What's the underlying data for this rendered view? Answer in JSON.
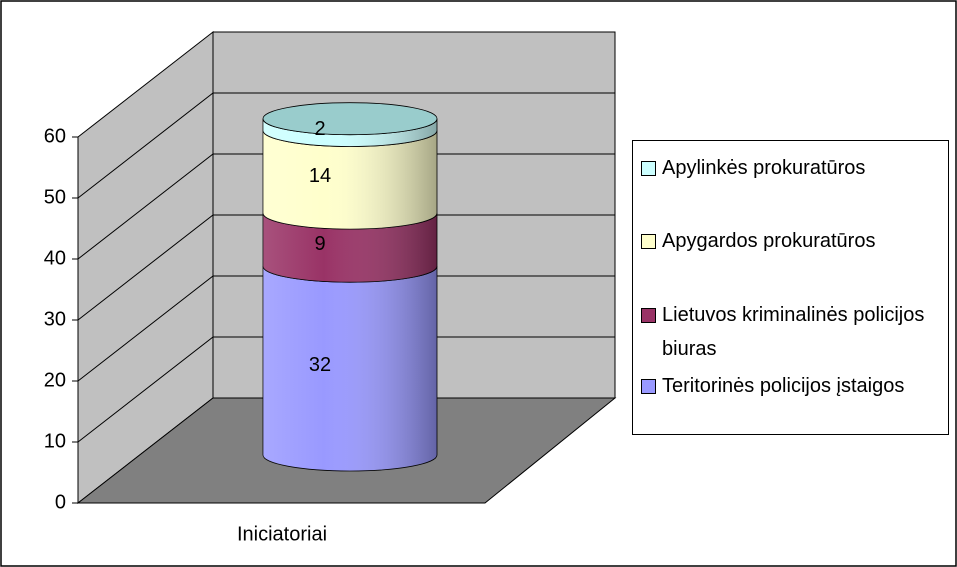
{
  "chart_data": {
    "type": "bar",
    "stacked": true,
    "three_d": true,
    "categories": [
      "Iniciatoriai"
    ],
    "series": [
      {
        "name": "Teritorinės policijos įstaigos",
        "color": "#9999ff",
        "values": [
          32
        ]
      },
      {
        "name": "Lietuvos kriminalinės policijos biuras",
        "color": "#993366",
        "values": [
          9
        ]
      },
      {
        "name": "Apygardos prokuratūros",
        "color": "#ffffcc",
        "values": [
          14
        ]
      },
      {
        "name": "Apylinkės prokuratūros",
        "color": "#ccffff",
        "values": [
          2
        ]
      }
    ],
    "ylim": [
      0,
      60
    ],
    "yticks": [
      0,
      10,
      20,
      30,
      40,
      50,
      60
    ],
    "grid": true,
    "legend": "right"
  }
}
